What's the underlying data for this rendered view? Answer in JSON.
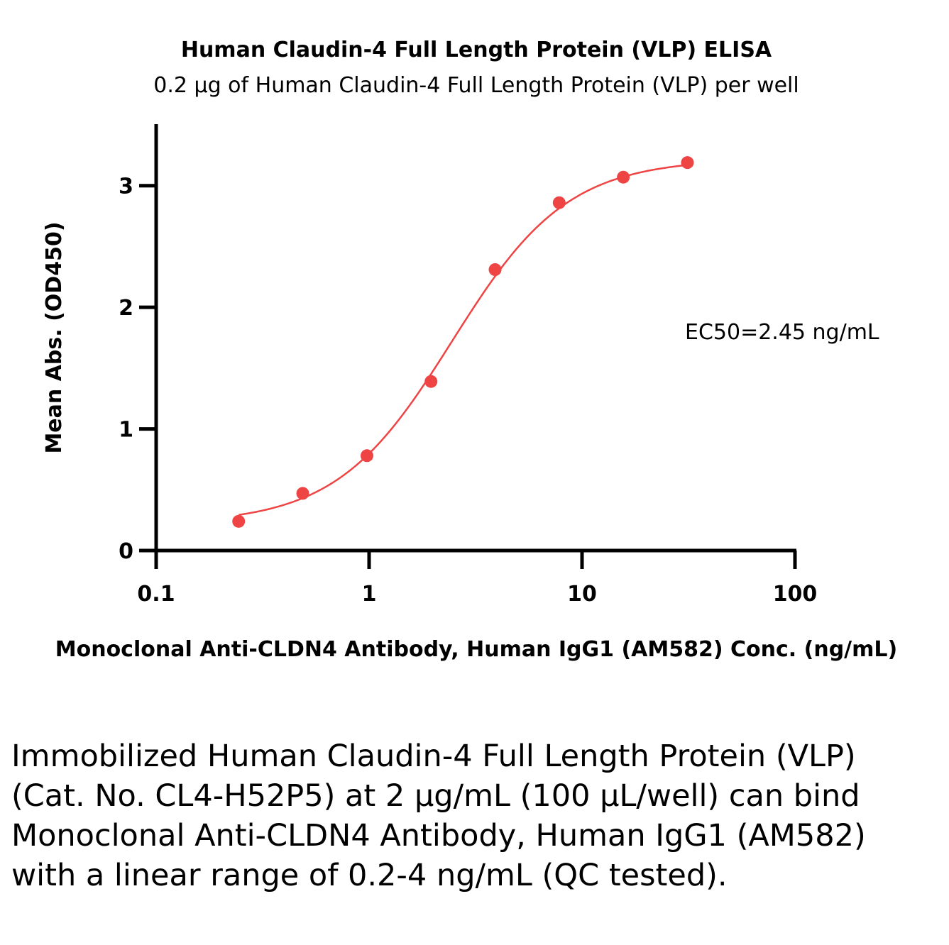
{
  "chart_data": {
    "type": "scatter",
    "title": "Human Claudin-4 Full Length Protein (VLP) ELISA",
    "subtitle": "0.2 μg of Human Claudin-4 Full Length Protein (VLP) per well",
    "xlabel": "Monoclonal Anti-CLDN4 Antibody, Human IgG1 (AM582) Conc. (ng/mL)",
    "ylabel": "Mean Abs. (OD450)",
    "xscale": "log",
    "xlim": [
      0.1,
      100
    ],
    "ylim": [
      0,
      3.5
    ],
    "xticks": [
      "0.1",
      "1",
      "10",
      "100"
    ],
    "xtick_values": [
      0.1,
      1,
      10,
      100
    ],
    "yticks": [
      "0",
      "1",
      "2",
      "3"
    ],
    "ytick_values": [
      0,
      1,
      2,
      3
    ],
    "grid": false,
    "series": [
      {
        "color": "#ee4444",
        "x": [
          0.244,
          0.488,
          0.977,
          1.953,
          3.906,
          7.813,
          15.625,
          31.25
        ],
        "y": [
          0.24,
          0.47,
          0.78,
          1.39,
          2.31,
          2.86,
          3.07,
          3.19
        ]
      }
    ],
    "fit": {
      "type": "4PL",
      "bottom": 0.22,
      "top": 3.22,
      "ec50": 2.45,
      "hill": 1.6,
      "color": "#ee4444"
    },
    "annotation": "EC50=2.45 ng/mL"
  },
  "caption": "Immobilized Human Claudin-4 Full Length Protein (VLP) (Cat. No. CL4-H52P5) at 2 μg/mL (100 μL/well) can bind Monoclonal Anti-CLDN4 Antibody, Human IgG1 (AM582) with a linear range of 0.2-4 ng/mL (QC tested)."
}
